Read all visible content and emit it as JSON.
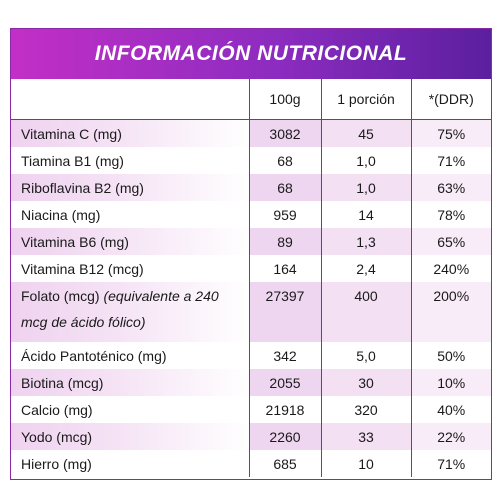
{
  "title": "INFORMACIÓN NUTRICIONAL",
  "columns": [
    "",
    "100g",
    "1 porción",
    "*(DDR)"
  ],
  "rows": [
    {
      "name": "Vitamina C (mg)",
      "note": "",
      "per100g": "3082",
      "portion": "45",
      "ddr": "75%"
    },
    {
      "name": "Tiamina B1 (mg)",
      "note": "",
      "per100g": "68",
      "portion": "1,0",
      "ddr": "71%"
    },
    {
      "name": "Riboflavina B2 (mg)",
      "note": "",
      "per100g": "68",
      "portion": "1,0",
      "ddr": "63%"
    },
    {
      "name": "Niacina (mg)",
      "note": "",
      "per100g": "959",
      "portion": "14",
      "ddr": "78%"
    },
    {
      "name": "Vitamina B6 (mg)",
      "note": "",
      "per100g": "89",
      "portion": "1,3",
      "ddr": "65%"
    },
    {
      "name": "Vitamina B12 (mcg)",
      "note": "",
      "per100g": "164",
      "portion": "2,4",
      "ddr": "240%"
    },
    {
      "name": "Folato (mcg) ",
      "note": "(equivalente a 240 mcg de ácido fólico)",
      "per100g": "27397",
      "portion": "400",
      "ddr": "200%"
    },
    {
      "name": "Ácido Pantoténico (mg)",
      "note": "",
      "per100g": "342",
      "portion": "5,0",
      "ddr": "50%"
    },
    {
      "name": "Biotina (mcg)",
      "note": "",
      "per100g": "2055",
      "portion": "30",
      "ddr": "10%"
    },
    {
      "name": "Calcio (mg)",
      "note": "",
      "per100g": "21918",
      "portion": "320",
      "ddr": "40%"
    },
    {
      "name": "Yodo (mcg)",
      "note": "",
      "per100g": "2260",
      "portion": "33",
      "ddr": "22%"
    },
    {
      "name": "Hierro (mg)",
      "note": "",
      "per100g": "685",
      "portion": "10",
      "ddr": "71%"
    }
  ],
  "colors": {
    "header_start": "#c22fc6",
    "header_end": "#5b1f9f",
    "border": "#8a2aa6",
    "row_shade": "#efd6f0"
  }
}
